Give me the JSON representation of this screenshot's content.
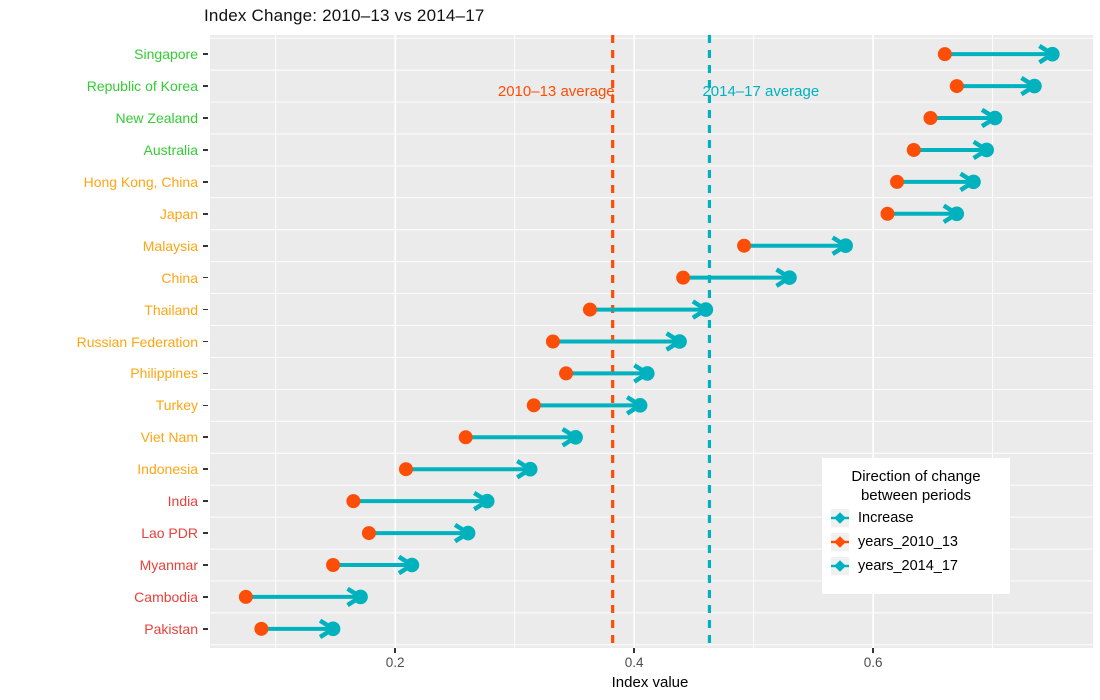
{
  "title": "Index Change: 2010–13 vs 2014–17",
  "axes": {
    "x_label": "Index value",
    "x_ticks": [
      0.2,
      0.4,
      0.6
    ],
    "x_tick_labels": [
      "0.2",
      "0.4",
      "0.6"
    ],
    "x_minor_gridlines": [
      0.1,
      0.3,
      0.5,
      0.7
    ],
    "x_domain": [
      0.045,
      0.784
    ]
  },
  "annotations": {
    "avg_2010_13": {
      "label": "2010–13 average",
      "value": 0.382
    },
    "avg_2014_17": {
      "label": "2014–17 average",
      "value": 0.463
    }
  },
  "legend": {
    "title_line1": "Direction of change",
    "title_line2": "between periods",
    "items": [
      {
        "label": "Increase",
        "color": "#00B2BE",
        "icon": "increase-arrow-icon"
      },
      {
        "label": "years_2010_13",
        "color": "#FC4E07",
        "icon": "period-2010-13-dot-icon"
      },
      {
        "label": "years_2014_17",
        "color": "#00B2BE",
        "icon": "period-2014-17-dot-icon"
      }
    ]
  },
  "colors": {
    "dot_2010": "#FC4E07",
    "dot_2014": "#00B2BE",
    "arrow": "#00B2BE",
    "avg_2010_line": "#FC4E07",
    "avg_2014_line": "#00B2BE",
    "panel_bg": "#EBEBEB",
    "grid": "#FFFFFF",
    "label_green": "#33CC33",
    "label_orange": "#FFA512",
    "label_red": "#E8403A",
    "axis_text": "#4D4D4D"
  },
  "chart_data": {
    "type": "dumbbell",
    "title": "Index Change: 2010–13 vs 2014–17",
    "xlabel": "Index value",
    "xlim": [
      0.045,
      0.784
    ],
    "grid": "on",
    "legend_position": "inside-bottom-right",
    "direction_of_change": "Increase (all countries)",
    "categories": [
      "Singapore",
      "Republic of Korea",
      "New Zealand",
      "Australia",
      "Hong Kong, China",
      "Japan",
      "Malaysia",
      "China",
      "Thailand",
      "Russian Federation",
      "Philippines",
      "Turkey",
      "Viet Nam",
      "Indonesia",
      "India",
      "Lao PDR",
      "Myanmar",
      "Cambodia",
      "Pakistan"
    ],
    "category_color_groups": [
      "green",
      "green",
      "green",
      "green",
      "orange",
      "orange",
      "orange",
      "orange",
      "orange",
      "orange",
      "orange",
      "orange",
      "orange",
      "orange",
      "red",
      "red",
      "red",
      "red",
      "red"
    ],
    "series": [
      {
        "name": "years_2010_13",
        "values": [
          0.66,
          0.67,
          0.648,
          0.634,
          0.62,
          0.612,
          0.492,
          0.441,
          0.363,
          0.332,
          0.343,
          0.316,
          0.259,
          0.209,
          0.165,
          0.178,
          0.148,
          0.075,
          0.088
        ]
      },
      {
        "name": "years_2014_17",
        "values": [
          0.75,
          0.735,
          0.702,
          0.695,
          0.684,
          0.67,
          0.577,
          0.53,
          0.46,
          0.438,
          0.411,
          0.405,
          0.351,
          0.313,
          0.277,
          0.261,
          0.214,
          0.171,
          0.148
        ]
      }
    ],
    "averages": {
      "years_2010_13": 0.382,
      "years_2014_17": 0.463
    }
  }
}
